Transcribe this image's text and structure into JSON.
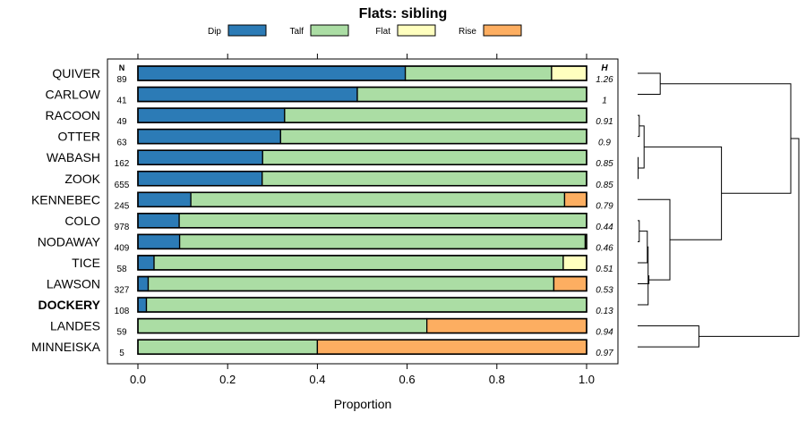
{
  "chart_data": {
    "type": "bar",
    "orientation": "horizontal",
    "stacked": true,
    "title": "Flats: sibling",
    "xlabel": "Proportion",
    "ylabel": "",
    "xlim": [
      0,
      1
    ],
    "xticks": [
      0.0,
      0.2,
      0.4,
      0.6,
      0.8,
      1.0
    ],
    "xtick_labels": [
      "0.0",
      "0.2",
      "0.4",
      "0.6",
      "0.8",
      "1.0"
    ],
    "n_header": "N",
    "h_header": "H",
    "legend_position": "top",
    "categories": [
      "QUIVER",
      "CARLOW",
      "RACOON",
      "OTTER",
      "WABASH",
      "ZOOK",
      "KENNEBEC",
      "COLO",
      "NODAWAY",
      "TICE",
      "LAWSON",
      "DOCKERY",
      "LANDES",
      "MINNEISKA"
    ],
    "highlighted_category": "DOCKERY",
    "n_values": [
      "89",
      "41",
      "49",
      "63",
      "162",
      "655",
      "245",
      "978",
      "409",
      "58",
      "327",
      "108",
      "59",
      "5"
    ],
    "h_values": [
      "1.26",
      "1",
      "0.91",
      "0.9",
      "0.85",
      "0.85",
      "0.79",
      "0.44",
      "0.46",
      "0.51",
      "0.53",
      "0.13",
      "0.94",
      "0.97"
    ],
    "series": [
      {
        "name": "Dip",
        "color": "#2c7bb6",
        "values": [
          0.596,
          0.489,
          0.327,
          0.318,
          0.278,
          0.277,
          0.118,
          0.092,
          0.093,
          0.036,
          0.023,
          0.019,
          0.0,
          0.0
        ]
      },
      {
        "name": "Talf",
        "color": "#abdda4",
        "values": [
          0.326,
          0.511,
          0.673,
          0.682,
          0.722,
          0.723,
          0.833,
          0.908,
          0.904,
          0.912,
          0.904,
          0.981,
          0.644,
          0.4
        ]
      },
      {
        "name": "Flat",
        "color": "#ffffbf",
        "values": [
          0.078,
          0.0,
          0.0,
          0.0,
          0.0,
          0.0,
          0.0,
          0.0,
          0.003,
          0.052,
          0.0,
          0.0,
          0.0,
          0.0
        ]
      },
      {
        "name": "Rise",
        "color": "#fdae61",
        "values": [
          0.0,
          0.0,
          0.0,
          0.0,
          0.0,
          0.0,
          0.049,
          0.0,
          0.0,
          0.0,
          0.073,
          0.0,
          0.356,
          0.6
        ]
      }
    ],
    "dendrogram": {
      "description": "hierarchical clustering of the rows",
      "nodes": [
        {
          "id": "a",
          "left": 0,
          "right": 1,
          "height": 0.14
        },
        {
          "id": "b",
          "left": 2,
          "right": 3,
          "height": 0.01
        },
        {
          "id": "c",
          "left": 4,
          "right": 5,
          "height": 0.003
        },
        {
          "id": "d",
          "left": "b",
          "right": "c",
          "height": 0.04
        },
        {
          "id": "e",
          "left": 7,
          "right": 8,
          "height": 0.01
        },
        {
          "id": "f",
          "left": "e",
          "right": 9,
          "height": 0.06
        },
        {
          "id": "g",
          "left": "f",
          "right": 11,
          "height": 0.065
        },
        {
          "id": "h",
          "left": "g",
          "right": 10,
          "height": 0.07
        },
        {
          "id": "i",
          "left": 6,
          "right": "h",
          "height": 0.2
        },
        {
          "id": "j",
          "left": "d",
          "right": "i",
          "height": 0.52
        },
        {
          "id": "k",
          "left": "a",
          "right": "j",
          "height": 0.95
        },
        {
          "id": "l",
          "left": 12,
          "right": 13,
          "height": 0.38
        },
        {
          "id": "m",
          "left": "k",
          "right": "l",
          "height": 1.0
        }
      ]
    }
  }
}
